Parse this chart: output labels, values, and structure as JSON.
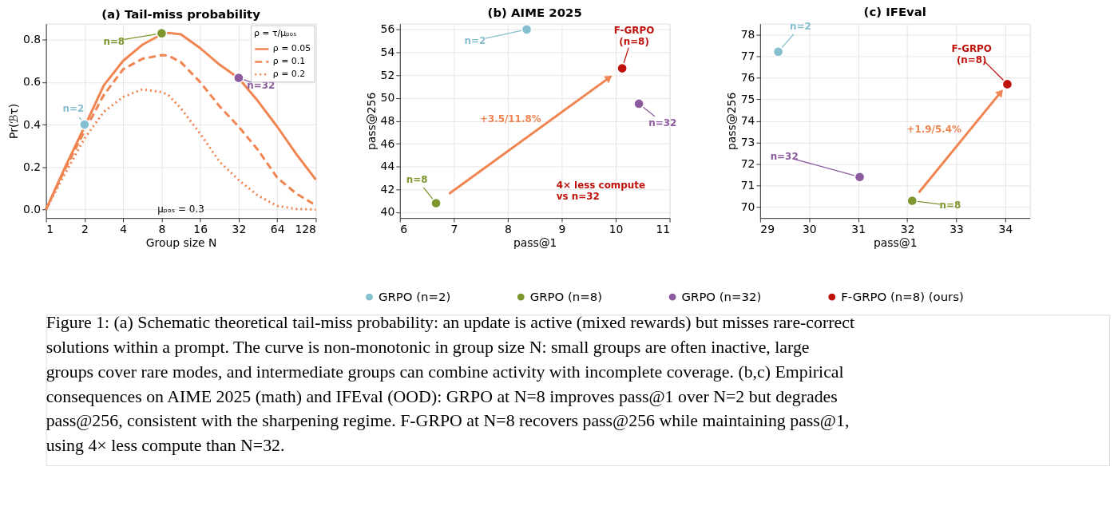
{
  "chart_data": [
    {
      "type": "line",
      "title": "(a) Tail-miss probability",
      "xlabel": "Group size N",
      "ylabel": "Pr(ℬτ)",
      "legend_title": "ρ = τ/μₚₒₛ",
      "legend": "top right",
      "grid": true,
      "log": "x",
      "x": [
        1,
        1.41,
        2,
        2.83,
        4,
        5.66,
        8,
        9,
        11.3,
        16,
        22.6,
        32,
        45.3,
        64,
        90.5,
        128
      ],
      "xlim": [
        1,
        128
      ],
      "xticks": [
        1,
        2,
        4,
        8,
        16,
        32,
        64,
        128
      ],
      "ylim": [
        -0.04,
        0.875
      ],
      "yticks": [
        {
          "value": 0,
          "label": "0.0"
        },
        0.2,
        0.4,
        0.6,
        0.8
      ],
      "series": [
        {
          "name": "ρ = 0.05",
          "color": "#f08552",
          "line_style": "solid",
          "marker": "none",
          "values": [
            0,
            0.2,
            0.39,
            0.585,
            0.7,
            0.776,
            0.825,
            0.832,
            0.825,
            0.76,
            0.683,
            0.618,
            0.51,
            0.39,
            0.26,
            0.141
          ]
        },
        {
          "name": "ρ = 0.1",
          "color": "#f08552",
          "line_style": "dashed",
          "marker": "none",
          "values": [
            0,
            0.19,
            0.37,
            0.54,
            0.66,
            0.71,
            0.727,
            0.725,
            0.694,
            0.6,
            0.487,
            0.39,
            0.28,
            0.15,
            0.074,
            0.02
          ]
        },
        {
          "name": "ρ = 0.2",
          "color": "#f08552",
          "line_style": "dotted",
          "marker": "none",
          "values": [
            0,
            0.17,
            0.335,
            0.46,
            0.53,
            0.566,
            0.553,
            0.54,
            0.477,
            0.357,
            0.226,
            0.139,
            0.065,
            0.017,
            0.003,
            0
          ]
        },
        {
          "type": "scatter",
          "color": "#86bfcf",
          "marker": "circle",
          "x": [
            2
          ],
          "values": [
            0.4
          ]
        },
        {
          "type": "scatter",
          "color": "#7d962e",
          "marker": "circle",
          "x": [
            8
          ],
          "values": [
            0.83
          ]
        },
        {
          "type": "scatter",
          "color": "#8c5a9e",
          "marker": "circle",
          "x": [
            32
          ],
          "values": [
            0.62
          ]
        }
      ],
      "annotations": [
        {
          "text": "n=2",
          "x": 2,
          "y": 0.4
        },
        {
          "text": "n=8",
          "x": 8,
          "y": 0.83
        },
        {
          "text": "n=32",
          "x": 32,
          "y": 0.62
        },
        "μₚₒₛ = 0.3"
      ]
    },
    {
      "type": "scatter",
      "title": "(b) AIME 2025",
      "xlabel": "pass@1",
      "ylabel": "pass@256",
      "grid": true,
      "legend": "bottom",
      "marker": "circle",
      "xlim": [
        6,
        11
      ],
      "xticks": [
        6,
        7,
        8,
        9,
        10,
        11
      ],
      "ylim": [
        39.5,
        56.5
      ],
      "yticks": [
        40,
        42,
        44,
        46,
        48,
        50,
        52,
        54,
        56
      ],
      "series": [
        {
          "name": "GRPO (n=2)",
          "color": "#86bfcf",
          "x": [
            8.35
          ],
          "values": [
            56.0
          ]
        },
        {
          "name": "GRPO (n=8)",
          "color": "#7d962e",
          "x": [
            6.67
          ],
          "values": [
            40.8
          ]
        },
        {
          "name": "GRPO (n=32)",
          "color": "#8c5a9e",
          "x": [
            10.43
          ],
          "values": [
            49.5
          ]
        },
        {
          "name": "F-GRPO (n=8) (ours)",
          "color": "#c0120c",
          "x": [
            10.12
          ],
          "values": [
            52.6
          ]
        }
      ],
      "annotations": [
        {
          "text": "n=2",
          "x": 8.35,
          "y": 56.0
        },
        {
          "text": "n=8",
          "x": 6.67,
          "y": 40.8
        },
        {
          "text": "n=32",
          "x": 10.43,
          "y": 49.5
        },
        {
          "text": "F-GRPO\n(n=8)",
          "x": 10.12,
          "y": 52.6
        },
        "+3.5/11.8%",
        "4× less compute\nvs n=32"
      ]
    },
    {
      "type": "scatter",
      "title": "(c) IFEval",
      "xlabel": "pass@1",
      "ylabel": "pass@256",
      "grid": true,
      "marker": "circle",
      "xlim": [
        29,
        34.5
      ],
      "xticks": [
        29,
        30,
        31,
        32,
        33,
        34
      ],
      "ylim": [
        69.5,
        78.5
      ],
      "yticks": [
        70,
        71,
        72,
        73,
        74,
        75,
        76,
        77,
        78
      ],
      "series": [
        {
          "name": "GRPO (n=2)",
          "color": "#86bfcf",
          "x": [
            29.37
          ],
          "values": [
            77.2
          ]
        },
        {
          "name": "GRPO (n=8)",
          "color": "#7d962e",
          "x": [
            32.1
          ],
          "values": [
            70.3
          ]
        },
        {
          "name": "GRPO (n=32)",
          "color": "#8c5a9e",
          "x": [
            31.03
          ],
          "values": [
            71.4
          ]
        },
        {
          "name": "F-GRPO (n=8) (ours)",
          "color": "#c0120c",
          "x": [
            34.04
          ],
          "values": [
            75.7
          ]
        }
      ],
      "annotations": [
        {
          "text": "n=2",
          "x": 29.37,
          "y": 77.2
        },
        {
          "text": "n=8",
          "x": 32.1,
          "y": 70.3
        },
        {
          "text": "n=32",
          "x": 31.03,
          "y": 71.4
        },
        {
          "text": "F-GRPO\n(n=8)",
          "x": 34.04,
          "y": 75.7
        },
        "+1.9/5.4%"
      ]
    },
    {
      "type": "other",
      "annotations": [
        "Figure 1: (a) Schematic theoretical tail-miss probability: an update is active (mixed rewards) but misses rare-correct\nsolutions within a prompt. The curve is non-monotonic in group size N: small groups are often inactive, large\ngroups cover rare modes, and intermediate groups can combine activity with incomplete coverage. (b,c) Empirical\nconsequences on AIME 2025 (math) and IFEval (OOD): GRPO at N=8 improves pass@1 over N=2 but degrades\npass@256, consistent with the sharpening regime. F-GRPO at N=8 recovers pass@256 while maintaining pass@1,\nusing 4× less compute than N=32."
      ]
    }
  ]
}
